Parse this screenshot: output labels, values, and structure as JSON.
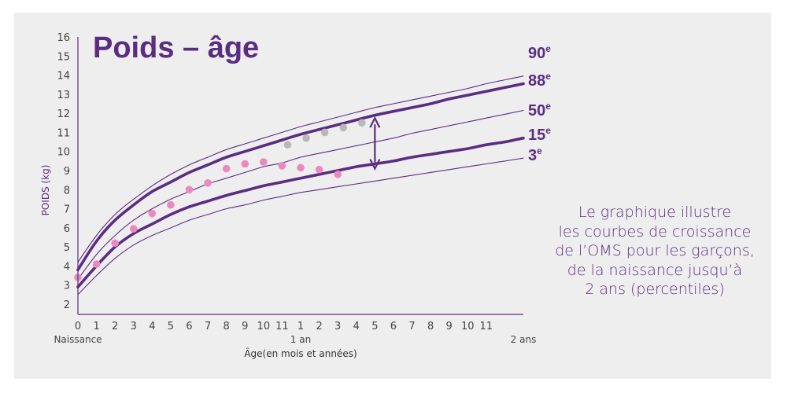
{
  "colors": {
    "accent": "#5a2d82",
    "pink": "#ec88c0",
    "gray": "#b8b8b8",
    "panel": "#efeeee"
  },
  "caption": {
    "lines": [
      "Le graphique illustre",
      "les courbes de croissance",
      "de l’OMS pour les garçons,",
      "de la naissance jusqu’à",
      "2 ans (percentiles)"
    ]
  },
  "chart_data": {
    "type": "line",
    "title": "Poids – âge",
    "ylabel": "POIDS (kg)",
    "xlabel": "Âge(en mois et années)",
    "xlim": [
      0,
      24
    ],
    "ylim": [
      2,
      16
    ],
    "y_ticks": [
      "2",
      "3",
      "4",
      "5",
      "6",
      "7",
      "8",
      "9",
      "10",
      "11",
      "12",
      "13",
      "14",
      "15",
      "16"
    ],
    "x_ticks": [
      "0",
      "1",
      "2",
      "3",
      "4",
      "5",
      "6",
      "7",
      "8",
      "9",
      "10",
      "11",
      "1",
      "2",
      "3",
      "4",
      "5",
      "6",
      "7",
      "8",
      "9",
      "10",
      "11"
    ],
    "x_sub_labels": [
      {
        "x": 0,
        "label": "Naissance"
      },
      {
        "x": 12,
        "label": "1 an"
      },
      {
        "x": 24,
        "label": "2 ans"
      }
    ],
    "series": [
      {
        "name": "90e",
        "sup": "e",
        "base": "90",
        "weight": "thin",
        "points": [
          [
            0,
            4.2
          ],
          [
            1,
            5.6
          ],
          [
            2,
            6.7
          ],
          [
            3,
            7.5
          ],
          [
            4,
            8.2
          ],
          [
            5,
            8.8
          ],
          [
            6,
            9.3
          ],
          [
            7,
            9.7
          ],
          [
            8,
            10.1
          ],
          [
            9,
            10.4
          ],
          [
            10,
            10.7
          ],
          [
            11,
            11.0
          ],
          [
            12,
            11.3
          ],
          [
            13,
            11.55
          ],
          [
            14,
            11.8
          ],
          [
            15,
            12.05
          ],
          [
            16,
            12.3
          ],
          [
            17,
            12.5
          ],
          [
            18,
            12.7
          ],
          [
            19,
            12.9
          ],
          [
            20,
            13.1
          ],
          [
            21,
            13.3
          ],
          [
            22,
            13.55
          ],
          [
            23,
            13.75
          ],
          [
            24,
            13.95
          ]
        ]
      },
      {
        "name": "88e",
        "sup": "e",
        "base": "88",
        "weight": "bold",
        "points": [
          [
            0,
            3.8
          ],
          [
            1,
            5.3
          ],
          [
            2,
            6.4
          ],
          [
            3,
            7.2
          ],
          [
            4,
            7.9
          ],
          [
            5,
            8.4
          ],
          [
            6,
            8.9
          ],
          [
            7,
            9.3
          ],
          [
            8,
            9.7
          ],
          [
            9,
            10.0
          ],
          [
            10,
            10.3
          ],
          [
            11,
            10.6
          ],
          [
            12,
            10.9
          ],
          [
            13,
            11.15
          ],
          [
            14,
            11.4
          ],
          [
            15,
            11.65
          ],
          [
            16,
            11.9
          ],
          [
            17,
            12.1
          ],
          [
            18,
            12.3
          ],
          [
            19,
            12.5
          ],
          [
            20,
            12.75
          ],
          [
            21,
            12.95
          ],
          [
            22,
            13.15
          ],
          [
            23,
            13.35
          ],
          [
            24,
            13.55
          ]
        ]
      },
      {
        "name": "50e",
        "sup": "e",
        "base": "50",
        "weight": "thin",
        "points": [
          [
            0,
            3.3
          ],
          [
            1,
            4.6
          ],
          [
            2,
            5.6
          ],
          [
            3,
            6.4
          ],
          [
            4,
            7.0
          ],
          [
            5,
            7.5
          ],
          [
            6,
            7.9
          ],
          [
            7,
            8.3
          ],
          [
            8,
            8.6
          ],
          [
            9,
            8.9
          ],
          [
            10,
            9.2
          ],
          [
            11,
            9.4
          ],
          [
            12,
            9.7
          ],
          [
            13,
            9.9
          ],
          [
            14,
            10.1
          ],
          [
            15,
            10.3
          ],
          [
            16,
            10.5
          ],
          [
            17,
            10.7
          ],
          [
            18,
            10.95
          ],
          [
            19,
            11.15
          ],
          [
            20,
            11.35
          ],
          [
            21,
            11.55
          ],
          [
            22,
            11.75
          ],
          [
            23,
            11.95
          ],
          [
            24,
            12.15
          ]
        ]
      },
      {
        "name": "15e",
        "sup": "e",
        "base": "15",
        "weight": "bold",
        "points": [
          [
            0,
            2.9
          ],
          [
            1,
            4.0
          ],
          [
            2,
            5.0
          ],
          [
            3,
            5.7
          ],
          [
            4,
            6.2
          ],
          [
            5,
            6.7
          ],
          [
            6,
            7.1
          ],
          [
            7,
            7.4
          ],
          [
            8,
            7.7
          ],
          [
            9,
            7.95
          ],
          [
            10,
            8.2
          ],
          [
            11,
            8.4
          ],
          [
            12,
            8.6
          ],
          [
            13,
            8.8
          ],
          [
            14,
            9.0
          ],
          [
            15,
            9.2
          ],
          [
            16,
            9.35
          ],
          [
            17,
            9.5
          ],
          [
            18,
            9.7
          ],
          [
            19,
            9.85
          ],
          [
            20,
            10.0
          ],
          [
            21,
            10.15
          ],
          [
            22,
            10.35
          ],
          [
            23,
            10.5
          ],
          [
            24,
            10.7
          ]
        ]
      },
      {
        "name": "3e",
        "sup": "e",
        "base": "3",
        "weight": "thin",
        "points": [
          [
            0,
            2.5
          ],
          [
            1,
            3.5
          ],
          [
            2,
            4.4
          ],
          [
            3,
            5.1
          ],
          [
            4,
            5.6
          ],
          [
            5,
            6.0
          ],
          [
            6,
            6.4
          ],
          [
            7,
            6.7
          ],
          [
            8,
            7.0
          ],
          [
            9,
            7.2
          ],
          [
            10,
            7.45
          ],
          [
            11,
            7.65
          ],
          [
            12,
            7.85
          ],
          [
            13,
            8.0
          ],
          [
            14,
            8.15
          ],
          [
            15,
            8.3
          ],
          [
            16,
            8.45
          ],
          [
            17,
            8.6
          ],
          [
            18,
            8.75
          ],
          [
            19,
            8.9
          ],
          [
            20,
            9.05
          ],
          [
            21,
            9.2
          ],
          [
            22,
            9.35
          ],
          [
            23,
            9.5
          ],
          [
            24,
            9.65
          ]
        ]
      }
    ],
    "dots_pink": [
      [
        0,
        3.4
      ],
      [
        1,
        4.1
      ],
      [
        2,
        5.2
      ],
      [
        3,
        5.95
      ],
      [
        4,
        6.75
      ],
      [
        5,
        7.2
      ],
      [
        6,
        8.0
      ],
      [
        7,
        8.35
      ],
      [
        8,
        9.1
      ],
      [
        9,
        9.35
      ],
      [
        10,
        9.45
      ],
      [
        11,
        9.25
      ],
      [
        12,
        9.15
      ],
      [
        13,
        9.05
      ],
      [
        14,
        8.8
      ]
    ],
    "dots_gray": [
      [
        11.3,
        10.35
      ],
      [
        12.3,
        10.7
      ],
      [
        13.3,
        11.0
      ],
      [
        14.3,
        11.25
      ],
      [
        15.3,
        11.5
      ]
    ],
    "arrow": {
      "x": 16,
      "from": 9.1,
      "to": 11.75
    }
  }
}
